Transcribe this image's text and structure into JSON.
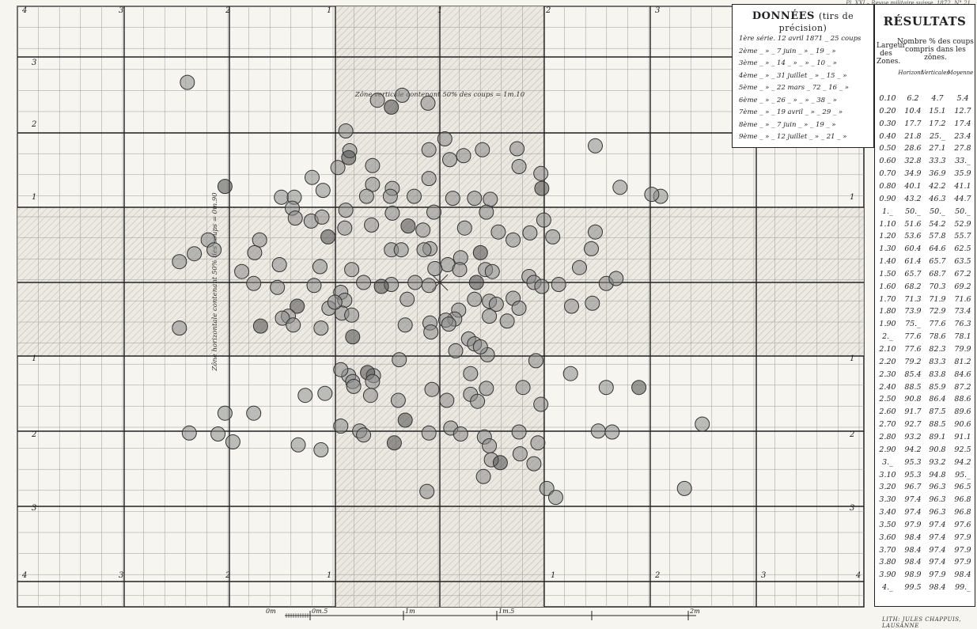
{
  "header_text": "Pl. XXI – Revue militaire suisse, 1872, N° 21",
  "donnees": {
    "title": "DONNÉES",
    "subtitle": "(tirs de précision)",
    "series": [
      "1ère série. 12 avril 1871 _ 25 coups",
      "2ème _ » _ 7 juin _ » _ 19 _ »",
      "3ème _ » _ 14 _ » _ » _ 10 _ »",
      "4ème _ » _ 31 juillet _ » _ 15 _ »",
      "5ème _ » _ 22 mars _ 72 _ 16 _ »",
      "6ème _ » _ 26 _ » _ » _ 38 _ »",
      "7ème _ » _ 19 avril _ » _ 29 _ »",
      "8ème _ » _ 7 juin _ » _ 19 _ »",
      "9ème _ » _ 12 juillet _ » _ 21 _ »"
    ]
  },
  "resultats": {
    "title": "RÉSULTATS",
    "col_width_header": "Largeur des Zones.",
    "pct_header": "Nombre % des coups compris dans les zônes.",
    "sub_headers": [
      "Horizont",
      "Verticales",
      "Moyenne"
    ],
    "rows": [
      [
        "0.10",
        "6.2",
        "4.7",
        "5.4"
      ],
      [
        "0.20",
        "10.4",
        "15.1",
        "12.7"
      ],
      [
        "0.30",
        "17.7",
        "17.2",
        "17.4"
      ],
      [
        "0.40",
        "21.8",
        "25._",
        "23.4"
      ],
      [
        "0.50",
        "28.6",
        "27.1",
        "27.8"
      ],
      [
        "0.60",
        "32.8",
        "33.3",
        "33._"
      ],
      [
        "0.70",
        "34.9",
        "36.9",
        "35.9"
      ],
      [
        "0.80",
        "40.1",
        "42.2",
        "41.1"
      ],
      [
        "0.90",
        "43.2",
        "46.3",
        "44.7"
      ],
      [
        "1._",
        "50._",
        "50._",
        "50._"
      ],
      [
        "1.10",
        "51.6",
        "54.2",
        "52.9"
      ],
      [
        "1.20",
        "53.6",
        "57.8",
        "55.7"
      ],
      [
        "1.30",
        "60.4",
        "64.6",
        "62.5"
      ],
      [
        "1.40",
        "61.4",
        "65.7",
        "63.5"
      ],
      [
        "1.50",
        "65.7",
        "68.7",
        "67.2"
      ],
      [
        "1.60",
        "68.2",
        "70.3",
        "69.2"
      ],
      [
        "1.70",
        "71.3",
        "71.9",
        "71.6"
      ],
      [
        "1.80",
        "73.9",
        "72.9",
        "73.4"
      ],
      [
        "1.90",
        "75._",
        "77.6",
        "76.3"
      ],
      [
        "2._",
        "77.6",
        "78.6",
        "78.1"
      ],
      [
        "2.10",
        "77.6",
        "82.3",
        "79.9"
      ],
      [
        "2.20",
        "79.2",
        "83.3",
        "81.2"
      ],
      [
        "2.30",
        "85.4",
        "83.8",
        "84.6"
      ],
      [
        "2.40",
        "88.5",
        "85.9",
        "87.2"
      ],
      [
        "2.50",
        "90.8",
        "86.4",
        "88.6"
      ],
      [
        "2.60",
        "91.7",
        "87.5",
        "89.6"
      ],
      [
        "2.70",
        "92.7",
        "88.5",
        "90.6"
      ],
      [
        "2.80",
        "93.2",
        "89.1",
        "91.1"
      ],
      [
        "2.90",
        "94.2",
        "90.8",
        "92.5"
      ],
      [
        "3._",
        "95.3",
        "93.2",
        "94.2"
      ],
      [
        "3.10",
        "95.3",
        "94.8",
        "95._"
      ],
      [
        "3.20",
        "96.7",
        "96.3",
        "96.5"
      ],
      [
        "3.30",
        "97.4",
        "96.3",
        "96.8"
      ],
      [
        "3.40",
        "97.4",
        "96.3",
        "96.8"
      ],
      [
        "3.50",
        "97.9",
        "97.4",
        "97.6"
      ],
      [
        "3.60",
        "98.4",
        "97.4",
        "97.9"
      ],
      [
        "3.70",
        "98.4",
        "97.4",
        "97.9"
      ],
      [
        "3.80",
        "98.4",
        "97.4",
        "97.9"
      ],
      [
        "3.90",
        "98.9",
        "97.9",
        "98.4"
      ],
      [
        "4._",
        "99.5",
        "98.4",
        "99._"
      ]
    ]
  },
  "zone_labels": {
    "vertical": "Zône verticale contenant 50% des coups = 1m.10",
    "horizontal": "Zône horizontale contenant 50% des coups = 0m.90"
  },
  "target": {
    "top_numbers": [
      "4",
      "3",
      "2",
      "1",
      "1",
      "2",
      "3"
    ],
    "bottom_numbers": [
      "4",
      "3",
      "2",
      "1",
      "1",
      "2",
      "3",
      "4"
    ],
    "side_left": [
      "3",
      "2",
      "1",
      "1",
      "2",
      "3"
    ],
    "side_right": [
      "1",
      "1",
      "2",
      "3"
    ],
    "rule": {
      "sq_m": 0.2125
    }
  },
  "scale_labels": [
    "0m",
    "0m.5",
    "1m",
    "1m.5",
    "2m"
  ],
  "credit": "LITH: JULES CHAPPUIS, LAUSANNE",
  "chart_data": {
    "type": "scatter",
    "title": "",
    "xlabel": "",
    "ylabel": "",
    "x_unit": "m",
    "y_unit": "m",
    "xlim": [
      -3.0,
      3.0
    ],
    "ylim": [
      -2.2,
      2.2
    ],
    "grid": true,
    "shots": [
      [
        -2.55,
        2.02
      ],
      [
        -0.38,
        1.89
      ],
      [
        -0.63,
        1.84
      ],
      [
        -0.49,
        1.77
      ],
      [
        -0.12,
        1.81
      ],
      [
        -0.95,
        1.53
      ],
      [
        0.05,
        1.45
      ],
      [
        0.43,
        1.34
      ],
      [
        0.78,
        1.35
      ],
      [
        1.57,
        1.38
      ],
      [
        -0.11,
        1.34
      ],
      [
        -0.91,
        1.33
      ],
      [
        0.24,
        1.28
      ],
      [
        0.1,
        1.24
      ],
      [
        -0.92,
        1.26
      ],
      [
        0.8,
        1.17
      ],
      [
        -0.11,
        1.05
      ],
      [
        -1.03,
        1.16
      ],
      [
        1.02,
        1.1
      ],
      [
        -0.68,
        1.18
      ],
      [
        -1.29,
        1.06
      ],
      [
        -0.68,
        0.99
      ],
      [
        -0.48,
        0.95
      ],
      [
        -0.48,
        0.7
      ],
      [
        1.82,
        0.96
      ],
      [
        1.03,
        0.95
      ],
      [
        -1.18,
        0.93
      ],
      [
        0.35,
        0.85
      ],
      [
        0.13,
        0.85
      ],
      [
        0.51,
        0.84
      ],
      [
        -0.26,
        0.87
      ],
      [
        -0.74,
        0.87
      ],
      [
        -0.5,
        0.87
      ],
      [
        -1.6,
        0.86
      ],
      [
        2.23,
        0.87
      ],
      [
        2.14,
        0.89
      ],
      [
        -2.17,
        0.97
      ],
      [
        -1.47,
        0.86
      ],
      [
        -1.49,
        0.75
      ],
      [
        -1.3,
        0.62
      ],
      [
        -1.46,
        0.65
      ],
      [
        -0.95,
        0.73
      ],
      [
        -1.19,
        0.66
      ],
      [
        -0.06,
        0.71
      ],
      [
        0.47,
        0.71
      ],
      [
        1.05,
        0.63
      ],
      [
        -0.17,
        0.53
      ],
      [
        -0.32,
        0.57
      ],
      [
        0.25,
        0.55
      ],
      [
        -0.69,
        0.58
      ],
      [
        -0.96,
        0.55
      ],
      [
        0.59,
        0.51
      ],
      [
        0.91,
        0.5
      ],
      [
        1.57,
        0.51
      ],
      [
        1.53,
        0.34
      ],
      [
        1.41,
        0.15
      ],
      [
        1.14,
        0.46
      ],
      [
        0.74,
        0.43
      ],
      [
        -1.13,
        0.46
      ],
      [
        -1.82,
        0.43
      ],
      [
        -2.34,
        0.43
      ],
      [
        -2.48,
        0.29
      ],
      [
        -2.28,
        0.33
      ],
      [
        -0.1,
        0.34
      ],
      [
        0.08,
        0.18
      ],
      [
        0.21,
        0.25
      ],
      [
        -0.16,
        0.33
      ],
      [
        -0.49,
        0.33
      ],
      [
        -0.39,
        0.33
      ],
      [
        0.41,
        0.3
      ],
      [
        -1.87,
        0.3
      ],
      [
        -1.62,
        0.18
      ],
      [
        -1.21,
        0.16
      ],
      [
        -2.0,
        0.11
      ],
      [
        -0.89,
        0.13
      ],
      [
        -2.63,
        0.21
      ],
      [
        0.46,
        0.13
      ],
      [
        0.53,
        0.11
      ],
      [
        0.2,
        0.13
      ],
      [
        0.9,
        0.06
      ],
      [
        0.37,
        0.0
      ],
      [
        -0.05,
        0.14
      ],
      [
        0.95,
        0.0
      ],
      [
        1.2,
        -0.02
      ],
      [
        1.68,
        -0.01
      ],
      [
        1.78,
        0.04
      ],
      [
        1.03,
        -0.04
      ],
      [
        -0.11,
        -0.03
      ],
      [
        -0.49,
        -0.02
      ],
      [
        -0.25,
        0.0
      ],
      [
        -0.77,
        0.0
      ],
      [
        -0.59,
        -0.04
      ],
      [
        -1.0,
        -0.1
      ],
      [
        -1.64,
        -0.05
      ],
      [
        -1.88,
        -0.01
      ],
      [
        -1.27,
        -0.03
      ],
      [
        -0.33,
        -0.17
      ],
      [
        0.35,
        -0.17
      ],
      [
        0.5,
        -0.19
      ],
      [
        0.74,
        -0.16
      ],
      [
        -0.96,
        -0.18
      ],
      [
        -1.12,
        -0.26
      ],
      [
        -1.44,
        -0.24
      ],
      [
        -0.99,
        -0.31
      ],
      [
        1.54,
        -0.21
      ],
      [
        0.8,
        -0.26
      ],
      [
        0.57,
        -0.22
      ],
      [
        1.33,
        -0.24
      ],
      [
        0.19,
        -0.28
      ],
      [
        0.15,
        -0.37
      ],
      [
        0.06,
        -0.38
      ],
      [
        0.5,
        -0.34
      ],
      [
        -0.1,
        -0.41
      ],
      [
        -1.81,
        -0.44
      ],
      [
        -1.53,
        -0.34
      ],
      [
        -0.89,
        -0.33
      ],
      [
        -1.06,
        -0.2
      ],
      [
        0.09,
        -0.42
      ],
      [
        0.68,
        -0.39
      ],
      [
        -1.59,
        -0.36
      ],
      [
        -1.48,
        -0.43
      ],
      [
        -2.63,
        -0.46
      ],
      [
        -1.2,
        -0.46
      ],
      [
        -0.35,
        -0.43
      ],
      [
        -0.88,
        -0.55
      ],
      [
        -0.09,
        -0.5
      ],
      [
        0.29,
        -0.57
      ],
      [
        0.35,
        -0.62
      ],
      [
        0.48,
        -0.73
      ],
      [
        0.41,
        -0.65
      ],
      [
        0.16,
        -0.69
      ],
      [
        -0.41,
        -0.78
      ],
      [
        -0.92,
        -0.94
      ],
      [
        -1.0,
        -0.88
      ],
      [
        -0.67,
        -0.94
      ],
      [
        -0.73,
        -0.91
      ],
      [
        0.97,
        -0.79
      ],
      [
        0.31,
        -0.92
      ],
      [
        1.32,
        -0.92
      ],
      [
        -0.88,
        -1.0
      ],
      [
        -0.68,
        -1.0
      ],
      [
        -0.7,
        -1.14
      ],
      [
        0.31,
        -1.13
      ],
      [
        0.47,
        -1.07
      ],
      [
        0.84,
        -1.06
      ],
      [
        1.68,
        -1.06
      ],
      [
        2.01,
        -1.06
      ],
      [
        0.38,
        -1.2
      ],
      [
        -1.16,
        -1.12
      ],
      [
        -1.36,
        -1.14
      ],
      [
        -0.87,
        -1.05
      ],
      [
        -0.42,
        -1.19
      ],
      [
        0.07,
        -1.19
      ],
      [
        -0.08,
        -1.08
      ],
      [
        1.02,
        -1.23
      ],
      [
        -2.17,
        -1.32
      ],
      [
        -1.88,
        -1.32
      ],
      [
        -0.35,
        -1.39
      ],
      [
        -1.0,
        -1.45
      ],
      [
        0.11,
        -1.47
      ],
      [
        0.8,
        -1.51
      ],
      [
        1.6,
        -1.5
      ],
      [
        2.65,
        -1.43
      ],
      [
        -2.53,
        -1.52
      ],
      [
        -2.24,
        -1.53
      ],
      [
        -2.09,
        -1.61
      ],
      [
        -0.81,
        -1.5
      ],
      [
        -0.77,
        -1.54
      ],
      [
        -0.46,
        -1.62
      ],
      [
        0.45,
        -1.56
      ],
      [
        0.21,
        -1.53
      ],
      [
        0.99,
        -1.62
      ],
      [
        1.74,
        -1.51
      ],
      [
        -0.11,
        -1.52
      ],
      [
        -1.2,
        -1.69
      ],
      [
        0.5,
        -1.65
      ],
      [
        0.52,
        -1.79
      ],
      [
        0.81,
        -1.73
      ],
      [
        -1.43,
        -1.64
      ],
      [
        0.61,
        -1.82
      ],
      [
        0.95,
        -1.83
      ],
      [
        0.44,
        -1.96
      ],
      [
        2.47,
        -2.08
      ],
      [
        -0.13,
        -2.11
      ],
      [
        1.08,
        -2.08
      ],
      [
        1.17,
        -2.17
      ]
    ]
  }
}
